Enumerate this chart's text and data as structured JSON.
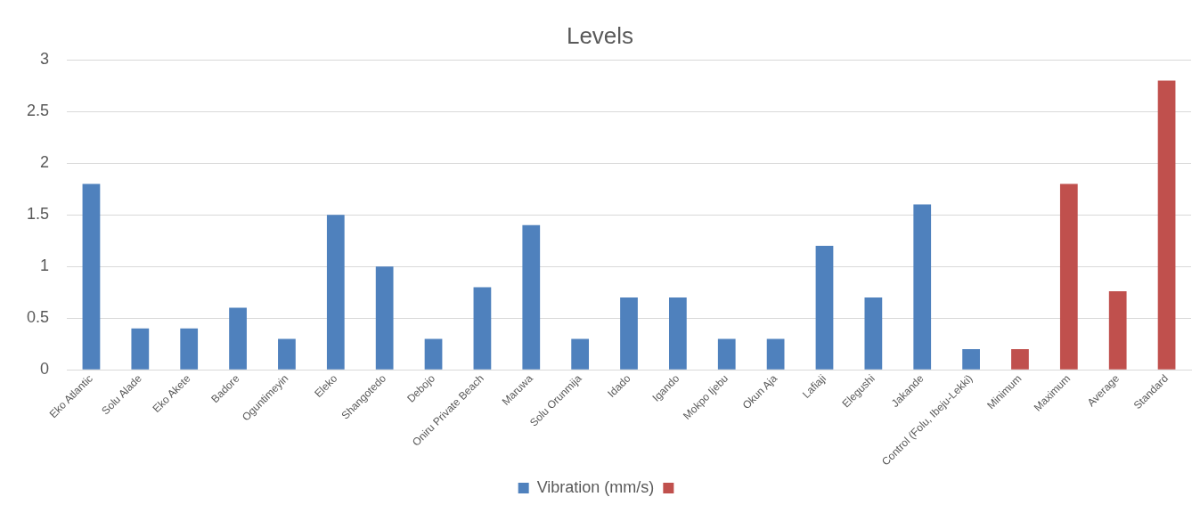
{
  "chart_data": {
    "type": "bar",
    "title": "Levels",
    "categories": [
      "Eko Atlantic",
      "Solu Alade",
      "Eko Akete",
      "Badore",
      "Oguntimeyin",
      "Eleko",
      "Shangotedo",
      "Debojo",
      "Oniru Private Beach",
      "Maruwa",
      "Solu Orunmija",
      "Idado",
      "Igando",
      "Mokpo Ijebu",
      "Okun Aja",
      "Lafiaji",
      "Elegushi",
      "Jakande",
      "Control (Folu, Ibeju-Lekki)",
      "Minimum",
      "Maximum",
      "Average",
      "Standard"
    ],
    "series": [
      {
        "name": "Vibration (mm/s)",
        "color": "#4f81bd",
        "values": [
          1.8,
          0.4,
          0.4,
          0.6,
          0.3,
          1.5,
          1.0,
          0.3,
          0.8,
          1.4,
          0.3,
          0.7,
          0.7,
          0.3,
          0.3,
          1.2,
          0.7,
          1.6,
          0.2,
          null,
          null,
          null,
          null
        ]
      },
      {
        "color": "#c0504d",
        "values": [
          null,
          null,
          null,
          null,
          null,
          null,
          null,
          null,
          null,
          null,
          null,
          null,
          null,
          null,
          null,
          null,
          null,
          null,
          null,
          0.2,
          1.8,
          0.76,
          2.8
        ]
      }
    ],
    "ylim": [
      0,
      3
    ],
    "yticks": [
      0,
      0.5,
      1,
      1.5,
      2,
      2.5,
      3
    ],
    "grid": "y",
    "legend": "bottom"
  }
}
